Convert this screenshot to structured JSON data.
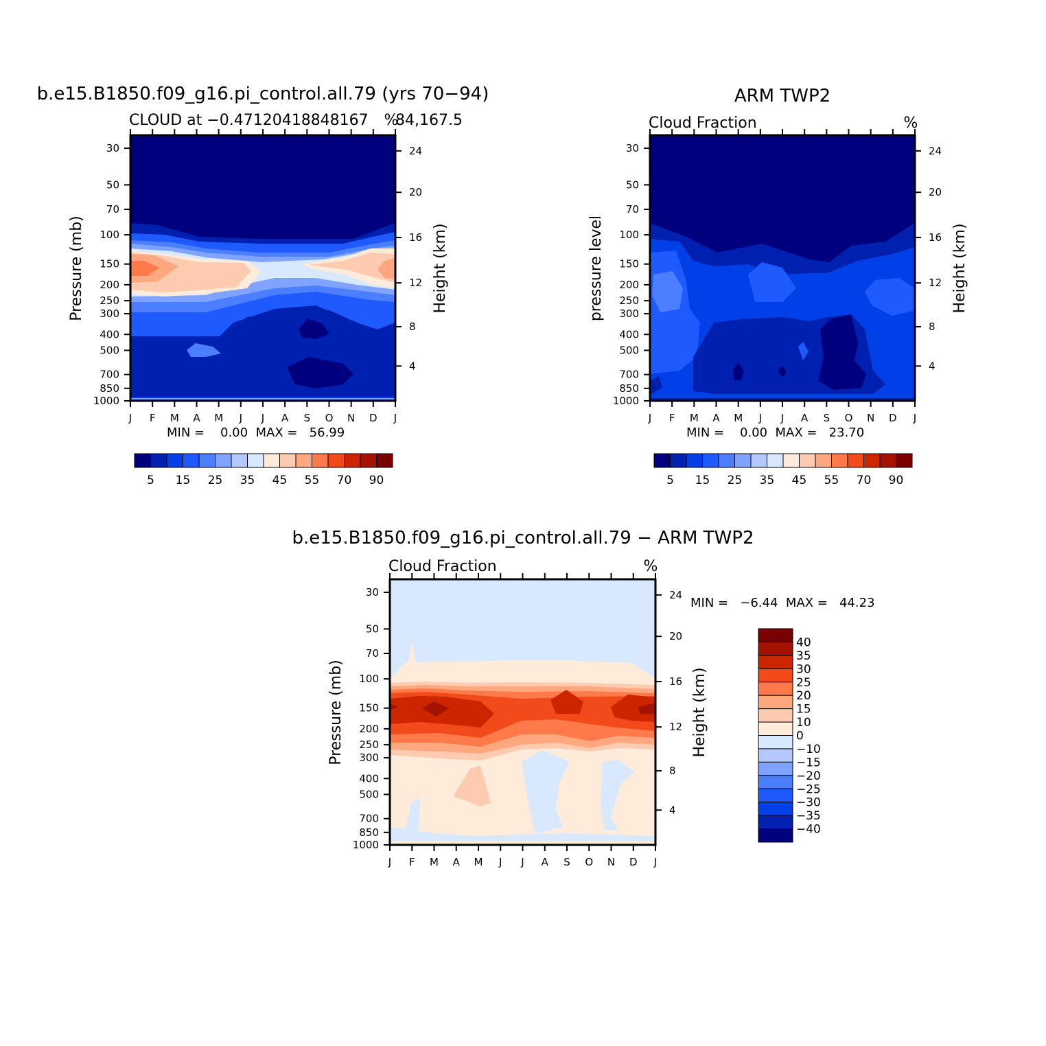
{
  "palette": [
    "#00007F",
    "#0020B0",
    "#0040E6",
    "#1F5AFF",
    "#4B7FFF",
    "#7FA3FF",
    "#B2C8FF",
    "#D7E8FF",
    "#FFEBD9",
    "#FFCBB0",
    "#FFA77E",
    "#FF7A4A",
    "#F24A1A",
    "#CC2500",
    "#A51200",
    "#7A0000"
  ],
  "diff_palette": [
    "#00007F",
    "#0020B0",
    "#0040E6",
    "#1F5AFF",
    "#4B7FFF",
    "#7FA3FF",
    "#B2C8FF",
    "#D7E8FF",
    "#FFEBD9",
    "#FFCBB0",
    "#FFA77E",
    "#FF7A4A",
    "#F24A1A",
    "#CC2500",
    "#A51200",
    "#7A0000"
  ],
  "chart_data": [
    {
      "type": "heatmap",
      "title": "b.e15.B1850.f09_g16.pi_control.all.79 (yrs 70−94)",
      "subtitle": "CLOUD at −0.47120418848167",
      "subtitle_right": "84,167.5",
      "units": "%",
      "ylabel": "Pressure (mb)",
      "ylabel_right": "Height (km)",
      "x_ticks": [
        "J",
        "F",
        "M",
        "A",
        "M",
        "J",
        "J",
        "A",
        "S",
        "O",
        "N",
        "D",
        "J"
      ],
      "y_ticks": [
        "30",
        "50",
        "70",
        "100",
        "150",
        "200",
        "250",
        "300",
        "400",
        "500",
        "700",
        "850",
        "1000"
      ],
      "y_ticks_right": [
        "24",
        "20",
        "16",
        "12",
        "8",
        "4"
      ],
      "min_max": "MIN =    0.00  MAX =   56.99",
      "colorbar_labels": [
        "5",
        "15",
        "25",
        "35",
        "45",
        "55",
        "70",
        "90"
      ]
    },
    {
      "type": "heatmap",
      "title": "ARM TWP2",
      "subtitle": "Cloud Fraction",
      "units": "%",
      "ylabel": "pressure level",
      "ylabel_right": "Height (km)",
      "x_ticks": [
        "J",
        "F",
        "M",
        "A",
        "M",
        "J",
        "J",
        "A",
        "S",
        "O",
        "N",
        "D",
        "J"
      ],
      "y_ticks": [
        "30",
        "50",
        "70",
        "100",
        "150",
        "200",
        "250",
        "300",
        "400",
        "500",
        "700",
        "850",
        "1000"
      ],
      "y_ticks_right": [
        "24",
        "20",
        "16",
        "12",
        "8",
        "4"
      ],
      "min_max": "MIN =    0.00  MAX =   23.70",
      "colorbar_labels": [
        "5",
        "15",
        "25",
        "35",
        "45",
        "55",
        "70",
        "90"
      ]
    },
    {
      "type": "heatmap",
      "title": "b.e15.B1850.f09_g16.pi_control.all.79 − ARM TWP2",
      "subtitle": "Cloud Fraction",
      "units": "%",
      "ylabel": "Pressure (mb)",
      "ylabel_right": "Height (km)",
      "x_ticks": [
        "J",
        "F",
        "M",
        "A",
        "M",
        "J",
        "J",
        "A",
        "S",
        "O",
        "N",
        "D",
        "J"
      ],
      "y_ticks": [
        "30",
        "50",
        "70",
        "100",
        "150",
        "200",
        "250",
        "300",
        "400",
        "500",
        "700",
        "850",
        "1000"
      ],
      "y_ticks_right": [
        "24",
        "20",
        "16",
        "12",
        "8",
        "4"
      ],
      "min_max": "MIN =   −6.44  MAX =   44.23",
      "colorbar_labels": [
        "40",
        "35",
        "30",
        "25",
        "20",
        "15",
        "10",
        "0",
        "−10",
        "−15",
        "−20",
        "−25",
        "−30",
        "−35",
        "−40"
      ]
    }
  ]
}
